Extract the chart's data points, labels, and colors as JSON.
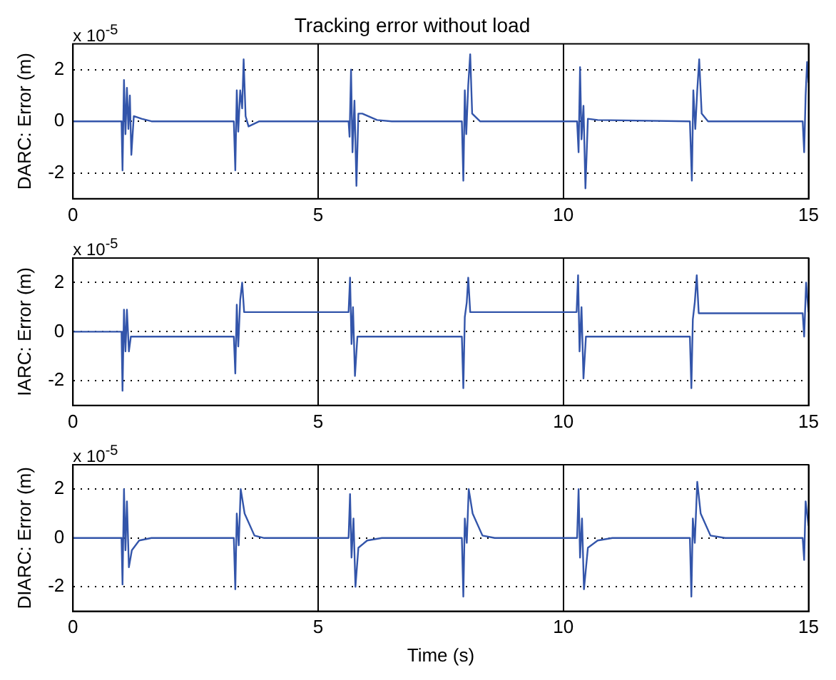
{
  "chart_data": [
    {
      "type": "line",
      "title": "Tracking error without load",
      "ylabel": "DARC: Error (m)",
      "annotations": [
        "x 10$^{-5}$"
      ],
      "xlim": [
        0,
        15
      ],
      "xticks": [
        0,
        5,
        10,
        15
      ],
      "ylim": [
        -3,
        3
      ],
      "yticks": [
        -2,
        0,
        2
      ],
      "grid": true,
      "marker": "none",
      "line_style": "solid",
      "series": [
        {
          "color": "#3355aa",
          "x": [
            0,
            0.99,
            1.01,
            1.04,
            1.07,
            1.1,
            1.13,
            1.16,
            1.19,
            1.24,
            1.4,
            1.6,
            3.28,
            3.31,
            3.34,
            3.37,
            3.41,
            3.45,
            3.48,
            3.52,
            3.58,
            3.8,
            5.62,
            5.64,
            5.67,
            5.7,
            5.74,
            5.78,
            5.82,
            5.9,
            6.2,
            6.5,
            7.93,
            7.96,
            7.99,
            8.02,
            8.06,
            8.1,
            8.14,
            8.3,
            10.28,
            10.31,
            10.34,
            10.37,
            10.41,
            10.45,
            10.5,
            10.7,
            12.58,
            12.62,
            12.65,
            12.69,
            12.73,
            12.77,
            12.82,
            12.95,
            14.88,
            14.91,
            14.94,
            14.97,
            15
          ],
          "values": [
            0,
            0,
            -1.9,
            1.6,
            -0.5,
            1.3,
            -0.3,
            1,
            -1.3,
            0.2,
            0.1,
            0,
            0,
            -1.9,
            1.2,
            -0.4,
            1.2,
            0.5,
            2.4,
            0.2,
            -0.2,
            0,
            0,
            -0.6,
            2,
            -1.2,
            0.8,
            -2.5,
            0.3,
            0.3,
            0.05,
            0,
            0,
            -2.3,
            1.2,
            -0.5,
            1.4,
            2.6,
            0.3,
            0,
            0,
            -1.2,
            2.1,
            -0.7,
            0.6,
            -2.6,
            0.1,
            0.05,
            0,
            -2.3,
            1.2,
            -0.3,
            1.2,
            2.4,
            0.3,
            0,
            0,
            -1.2,
            1,
            2.3,
            1.5
          ]
        }
      ]
    },
    {
      "type": "line",
      "ylabel": "IARC: Error (m)",
      "annotations": [
        "x 10$^{-5}$"
      ],
      "xlim": [
        0,
        15
      ],
      "xticks": [
        0,
        5,
        10,
        15
      ],
      "ylim": [
        -3,
        3
      ],
      "yticks": [
        -2,
        0,
        2
      ],
      "grid": true,
      "marker": "none",
      "line_style": "solid",
      "series": [
        {
          "color": "#3355aa",
          "x": [
            0,
            0.99,
            1.01,
            1.04,
            1.07,
            1.1,
            1.14,
            1.18,
            3.28,
            3.31,
            3.34,
            3.37,
            3.41,
            3.45,
            3.49,
            5.62,
            5.65,
            5.68,
            5.71,
            5.75,
            5.8,
            7.93,
            7.96,
            7.99,
            8.03,
            8.06,
            8.1,
            10.27,
            10.3,
            10.33,
            10.37,
            10.41,
            10.46,
            12.58,
            12.61,
            12.64,
            12.68,
            12.72,
            12.76,
            14.88,
            14.91,
            14.95,
            15
          ],
          "values": [
            0,
            0,
            -2.4,
            0.9,
            -0.8,
            0.9,
            -0.8,
            -0.2,
            -0.2,
            -1.7,
            1.1,
            -0.6,
            1.3,
            2,
            0.8,
            0.8,
            2.2,
            -0.5,
            1,
            -1.8,
            -0.2,
            -0.2,
            -2.3,
            0.6,
            1.2,
            2.2,
            0.8,
            0.8,
            2.3,
            -0.8,
            1,
            -1.9,
            -0.2,
            -0.2,
            -2.3,
            0.5,
            1.2,
            2.3,
            0.75,
            0.75,
            -0.2,
            2,
            0.8
          ]
        }
      ]
    },
    {
      "type": "line",
      "ylabel": "DIARC: Error (m)",
      "xlabel": "Time (s)",
      "annotations": [
        "x 10$^{-5}$"
      ],
      "xlim": [
        0,
        15
      ],
      "xticks": [
        0,
        5,
        10,
        15
      ],
      "ylim": [
        -3,
        3
      ],
      "yticks": [
        -2,
        0,
        2
      ],
      "grid": true,
      "marker": "none",
      "line_style": "solid",
      "series": [
        {
          "color": "#3355aa",
          "x": [
            0,
            0.99,
            1.01,
            1.04,
            1.07,
            1.1,
            1.14,
            1.2,
            1.35,
            1.6,
            3.28,
            3.31,
            3.34,
            3.38,
            3.42,
            3.5,
            3.7,
            3.9,
            5.62,
            5.65,
            5.68,
            5.72,
            5.76,
            5.82,
            6,
            6.3,
            7.93,
            7.96,
            7.99,
            8.03,
            8.07,
            8.15,
            8.35,
            8.6,
            10.28,
            10.31,
            10.34,
            10.38,
            10.42,
            10.5,
            10.7,
            11,
            12.58,
            12.61,
            12.64,
            12.68,
            12.73,
            12.8,
            13,
            13.3,
            14.88,
            14.91,
            14.94,
            15
          ],
          "values": [
            0,
            0,
            -1.9,
            2,
            -0.5,
            1.5,
            -1.2,
            -0.5,
            -0.1,
            0,
            0,
            -2.1,
            1,
            -0.3,
            2,
            1,
            0.1,
            0,
            0,
            1.8,
            -0.8,
            0.8,
            -2,
            -0.4,
            -0.1,
            0,
            0,
            -2.4,
            0.8,
            -0.2,
            2,
            1,
            0.1,
            0,
            0,
            2,
            -0.8,
            0.8,
            -2.1,
            -0.4,
            -0.1,
            0,
            0,
            -2.4,
            0.8,
            -0.2,
            2.3,
            1,
            0.1,
            0,
            0,
            -0.9,
            1.5,
            0.5
          ]
        }
      ]
    }
  ]
}
